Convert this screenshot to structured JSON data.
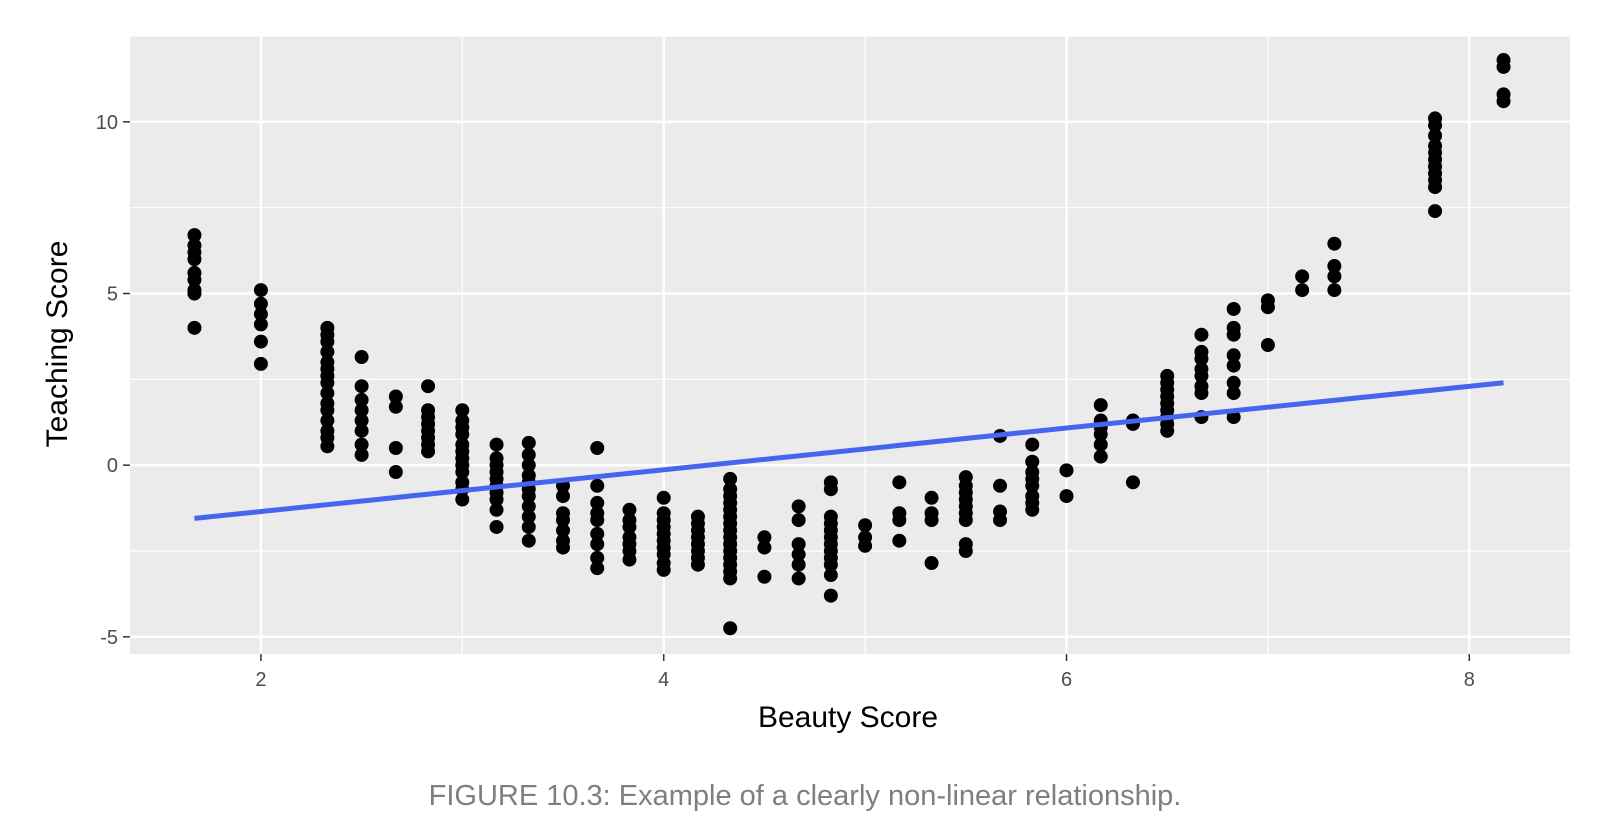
{
  "caption": "FIGURE 10.3: Example of a clearly non-linear relationship.",
  "chart_data": {
    "type": "scatter",
    "title": "",
    "xlabel": "Beauty Score",
    "ylabel": "Teaching Score",
    "xlim": [
      1.35,
      8.5
    ],
    "ylim": [
      -5.5,
      12.5
    ],
    "xticks": [
      2,
      4,
      6,
      8
    ],
    "xtick_labels": [
      "2",
      "4",
      "6",
      "8"
    ],
    "yticks": [
      -5,
      0,
      5,
      10
    ],
    "ytick_labels": [
      "-5",
      "0",
      "5",
      "10"
    ],
    "grid": true,
    "legend": "none",
    "colors": {
      "panel": "#ebebeb",
      "grid": "#ffffff",
      "points": "#000000",
      "fit_line": "#4466ee"
    },
    "fit_line": {
      "x": [
        1.67,
        8.17
      ],
      "y": [
        -1.55,
        2.4
      ]
    },
    "points": [
      [
        1.67,
        6.7
      ],
      [
        1.67,
        6.4
      ],
      [
        1.67,
        6.2
      ],
      [
        1.67,
        6.0
      ],
      [
        1.67,
        5.6
      ],
      [
        1.67,
        5.4
      ],
      [
        1.67,
        5.1
      ],
      [
        1.67,
        5.0
      ],
      [
        1.67,
        4.0
      ],
      [
        2.0,
        5.1
      ],
      [
        2.0,
        4.7
      ],
      [
        2.0,
        4.4
      ],
      [
        2.0,
        4.1
      ],
      [
        2.0,
        3.6
      ],
      [
        2.0,
        2.95
      ],
      [
        2.33,
        4.0
      ],
      [
        2.33,
        3.8
      ],
      [
        2.33,
        3.6
      ],
      [
        2.33,
        3.3
      ],
      [
        2.33,
        3.0
      ],
      [
        2.33,
        2.8
      ],
      [
        2.33,
        2.6
      ],
      [
        2.33,
        2.4
      ],
      [
        2.33,
        2.1
      ],
      [
        2.33,
        1.8
      ],
      [
        2.33,
        1.6
      ],
      [
        2.33,
        1.3
      ],
      [
        2.33,
        1.0
      ],
      [
        2.33,
        0.8
      ],
      [
        2.33,
        0.55
      ],
      [
        2.5,
        3.15
      ],
      [
        2.5,
        2.3
      ],
      [
        2.5,
        1.9
      ],
      [
        2.5,
        1.6
      ],
      [
        2.5,
        1.3
      ],
      [
        2.5,
        1.0
      ],
      [
        2.5,
        0.6
      ],
      [
        2.5,
        0.3
      ],
      [
        2.67,
        2.0
      ],
      [
        2.67,
        1.7
      ],
      [
        2.67,
        0.5
      ],
      [
        2.67,
        -0.2
      ],
      [
        2.83,
        2.3
      ],
      [
        2.83,
        1.6
      ],
      [
        2.83,
        1.4
      ],
      [
        2.83,
        1.2
      ],
      [
        2.83,
        1.0
      ],
      [
        2.83,
        0.8
      ],
      [
        2.83,
        0.6
      ],
      [
        2.83,
        0.4
      ],
      [
        3.0,
        1.6
      ],
      [
        3.0,
        1.3
      ],
      [
        3.0,
        1.1
      ],
      [
        3.0,
        0.9
      ],
      [
        3.0,
        0.6
      ],
      [
        3.0,
        0.4
      ],
      [
        3.0,
        0.2
      ],
      [
        3.0,
        0.0
      ],
      [
        3.0,
        -0.2
      ],
      [
        3.0,
        -0.5
      ],
      [
        3.0,
        -0.7
      ],
      [
        3.0,
        -1.0
      ],
      [
        3.17,
        0.6
      ],
      [
        3.17,
        0.2
      ],
      [
        3.17,
        0.0
      ],
      [
        3.17,
        -0.2
      ],
      [
        3.17,
        -0.4
      ],
      [
        3.17,
        -0.6
      ],
      [
        3.17,
        -0.8
      ],
      [
        3.17,
        -1.0
      ],
      [
        3.17,
        -1.3
      ],
      [
        3.17,
        -1.8
      ],
      [
        3.33,
        0.65
      ],
      [
        3.33,
        0.3
      ],
      [
        3.33,
        0.0
      ],
      [
        3.33,
        -0.3
      ],
      [
        3.33,
        -0.5
      ],
      [
        3.33,
        -0.7
      ],
      [
        3.33,
        -0.9
      ],
      [
        3.33,
        -1.2
      ],
      [
        3.33,
        -1.5
      ],
      [
        3.33,
        -1.8
      ],
      [
        3.33,
        -2.2
      ],
      [
        3.5,
        -0.6
      ],
      [
        3.5,
        -0.9
      ],
      [
        3.5,
        -1.4
      ],
      [
        3.5,
        -1.6
      ],
      [
        3.5,
        -1.9
      ],
      [
        3.5,
        -2.2
      ],
      [
        3.5,
        -2.4
      ],
      [
        3.67,
        0.5
      ],
      [
        3.67,
        -0.6
      ],
      [
        3.67,
        -1.1
      ],
      [
        3.67,
        -1.4
      ],
      [
        3.67,
        -1.6
      ],
      [
        3.67,
        -2.0
      ],
      [
        3.67,
        -2.3
      ],
      [
        3.67,
        -2.7
      ],
      [
        3.67,
        -3.0
      ],
      [
        3.83,
        -1.3
      ],
      [
        3.83,
        -1.6
      ],
      [
        3.83,
        -1.8
      ],
      [
        3.83,
        -2.1
      ],
      [
        3.83,
        -2.3
      ],
      [
        3.83,
        -2.5
      ],
      [
        3.83,
        -2.75
      ],
      [
        4.0,
        -0.95
      ],
      [
        4.0,
        -1.4
      ],
      [
        4.0,
        -1.6
      ],
      [
        4.0,
        -1.8
      ],
      [
        4.0,
        -2.0
      ],
      [
        4.0,
        -2.2
      ],
      [
        4.0,
        -2.4
      ],
      [
        4.0,
        -2.6
      ],
      [
        4.0,
        -2.85
      ],
      [
        4.0,
        -3.05
      ],
      [
        4.17,
        -1.5
      ],
      [
        4.17,
        -1.7
      ],
      [
        4.17,
        -1.9
      ],
      [
        4.17,
        -2.1
      ],
      [
        4.17,
        -2.3
      ],
      [
        4.17,
        -2.5
      ],
      [
        4.17,
        -2.7
      ],
      [
        4.17,
        -2.9
      ],
      [
        4.33,
        -0.4
      ],
      [
        4.33,
        -0.7
      ],
      [
        4.33,
        -0.9
      ],
      [
        4.33,
        -1.1
      ],
      [
        4.33,
        -1.3
      ],
      [
        4.33,
        -1.5
      ],
      [
        4.33,
        -1.7
      ],
      [
        4.33,
        -1.9
      ],
      [
        4.33,
        -2.1
      ],
      [
        4.33,
        -2.3
      ],
      [
        4.33,
        -2.5
      ],
      [
        4.33,
        -2.7
      ],
      [
        4.33,
        -2.9
      ],
      [
        4.33,
        -3.1
      ],
      [
        4.33,
        -3.3
      ],
      [
        4.33,
        -4.75
      ],
      [
        4.5,
        -2.1
      ],
      [
        4.5,
        -2.4
      ],
      [
        4.5,
        -3.25
      ],
      [
        4.67,
        -1.2
      ],
      [
        4.67,
        -1.6
      ],
      [
        4.67,
        -2.3
      ],
      [
        4.67,
        -2.6
      ],
      [
        4.67,
        -2.9
      ],
      [
        4.67,
        -3.3
      ],
      [
        4.83,
        -0.5
      ],
      [
        4.83,
        -0.7
      ],
      [
        4.83,
        -1.5
      ],
      [
        4.83,
        -1.7
      ],
      [
        4.83,
        -1.9
      ],
      [
        4.83,
        -2.1
      ],
      [
        4.83,
        -2.3
      ],
      [
        4.83,
        -2.5
      ],
      [
        4.83,
        -2.7
      ],
      [
        4.83,
        -2.9
      ],
      [
        4.83,
        -3.2
      ],
      [
        4.83,
        -3.8
      ],
      [
        5.0,
        -1.75
      ],
      [
        5.0,
        -2.1
      ],
      [
        5.0,
        -2.35
      ],
      [
        5.17,
        -0.5
      ],
      [
        5.17,
        -1.4
      ],
      [
        5.17,
        -1.6
      ],
      [
        5.17,
        -2.2
      ],
      [
        5.33,
        -0.95
      ],
      [
        5.33,
        -1.4
      ],
      [
        5.33,
        -1.6
      ],
      [
        5.33,
        -2.85
      ],
      [
        5.5,
        -0.35
      ],
      [
        5.5,
        -0.6
      ],
      [
        5.5,
        -0.8
      ],
      [
        5.5,
        -1.0
      ],
      [
        5.5,
        -1.2
      ],
      [
        5.5,
        -1.4
      ],
      [
        5.5,
        -1.6
      ],
      [
        5.5,
        -2.3
      ],
      [
        5.5,
        -2.5
      ],
      [
        5.67,
        0.85
      ],
      [
        5.67,
        -0.6
      ],
      [
        5.67,
        -1.35
      ],
      [
        5.67,
        -1.6
      ],
      [
        5.83,
        0.6
      ],
      [
        5.83,
        0.1
      ],
      [
        5.83,
        -0.2
      ],
      [
        5.83,
        -0.4
      ],
      [
        5.83,
        -0.6
      ],
      [
        5.83,
        -0.9
      ],
      [
        5.83,
        -1.1
      ],
      [
        5.83,
        -1.3
      ],
      [
        6.0,
        -0.15
      ],
      [
        6.0,
        -0.9
      ],
      [
        6.17,
        1.75
      ],
      [
        6.17,
        1.3
      ],
      [
        6.17,
        1.1
      ],
      [
        6.17,
        0.9
      ],
      [
        6.17,
        0.6
      ],
      [
        6.17,
        0.25
      ],
      [
        6.33,
        1.3
      ],
      [
        6.33,
        1.2
      ],
      [
        6.33,
        -0.5
      ],
      [
        6.5,
        2.6
      ],
      [
        6.5,
        2.4
      ],
      [
        6.5,
        2.2
      ],
      [
        6.5,
        2.0
      ],
      [
        6.5,
        1.8
      ],
      [
        6.5,
        1.6
      ],
      [
        6.5,
        1.4
      ],
      [
        6.5,
        1.2
      ],
      [
        6.5,
        1.0
      ],
      [
        6.67,
        3.8
      ],
      [
        6.67,
        3.3
      ],
      [
        6.67,
        3.1
      ],
      [
        6.67,
        2.8
      ],
      [
        6.67,
        2.6
      ],
      [
        6.67,
        2.3
      ],
      [
        6.67,
        2.1
      ],
      [
        6.67,
        1.4
      ],
      [
        6.83,
        4.55
      ],
      [
        6.83,
        4.0
      ],
      [
        6.83,
        3.8
      ],
      [
        6.83,
        3.2
      ],
      [
        6.83,
        2.9
      ],
      [
        6.83,
        2.4
      ],
      [
        6.83,
        2.1
      ],
      [
        6.83,
        1.4
      ],
      [
        7.0,
        4.8
      ],
      [
        7.0,
        4.6
      ],
      [
        7.0,
        3.5
      ],
      [
        7.17,
        5.5
      ],
      [
        7.17,
        5.1
      ],
      [
        7.33,
        6.45
      ],
      [
        7.33,
        5.8
      ],
      [
        7.33,
        5.5
      ],
      [
        7.33,
        5.1
      ],
      [
        7.83,
        10.1
      ],
      [
        7.83,
        9.9
      ],
      [
        7.83,
        9.6
      ],
      [
        7.83,
        9.3
      ],
      [
        7.83,
        9.1
      ],
      [
        7.83,
        8.9
      ],
      [
        7.83,
        8.7
      ],
      [
        7.83,
        8.5
      ],
      [
        7.83,
        8.3
      ],
      [
        7.83,
        8.1
      ],
      [
        7.83,
        7.4
      ],
      [
        8.17,
        11.8
      ],
      [
        8.17,
        11.6
      ],
      [
        8.17,
        10.8
      ],
      [
        8.17,
        10.6
      ]
    ]
  }
}
